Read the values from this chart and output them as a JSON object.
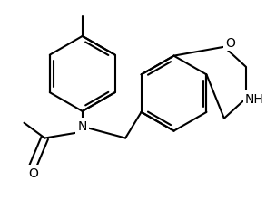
{
  "background_color": "#ffffff",
  "line_color": "#000000",
  "line_width": 1.5,
  "font_size": 9,
  "figsize": [
    3.04,
    2.32
  ],
  "dpi": 100,
  "xlim": [
    0,
    304
  ],
  "ylim": [
    0,
    232
  ]
}
